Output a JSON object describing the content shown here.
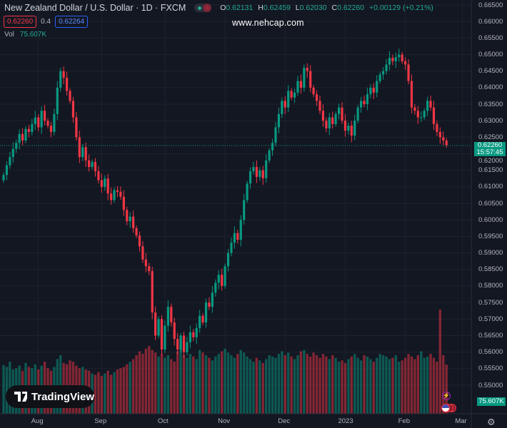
{
  "header": {
    "symbol_title": "New Zealand Dollar / U.S. Dollar · 1D · FXCM",
    "ohlc": {
      "o_label": "O",
      "o": "0.62131",
      "h_label": "H",
      "h": "0.62459",
      "l_label": "L",
      "l": "0.62030",
      "c_label": "C",
      "c": "0.62260",
      "change": "+0.00129 (+0.21%)"
    },
    "bid": "0.62260",
    "spread": "0.4",
    "ask": "0.62264",
    "vol_label": "Vol",
    "vol_value": "75.607K"
  },
  "watermark": "www.nehcap.com",
  "logo_text": "TradingView",
  "current_price_label": "0.62260",
  "countdown": "15:57:45",
  "current_volume_label": "75.607K",
  "colors": {
    "up": "#089981",
    "down": "#f23645",
    "background": "#131722"
  },
  "chart_data": {
    "type": "candlestick",
    "title": "New Zealand Dollar / U.S. Dollar · 1D · FXCM",
    "y_ticks": [
      "0.66500",
      "0.66000",
      "0.65500",
      "0.65000",
      "0.64500",
      "0.64000",
      "0.63500",
      "0.63000",
      "0.62500",
      "0.62000",
      "0.61500",
      "0.61000",
      "0.60500",
      "0.60000",
      "0.59500",
      "0.59000",
      "0.58500",
      "0.58000",
      "0.57500",
      "0.57000",
      "0.56500",
      "0.56000",
      "0.55500",
      "0.55000"
    ],
    "ylim": [
      0.55,
      0.665
    ],
    "x_ticks": [
      {
        "label": "Aug",
        "bar": 11
      },
      {
        "label": "Sep",
        "bar": 31
      },
      {
        "label": "Oct",
        "bar": 51
      },
      {
        "label": "Nov",
        "bar": 70
      },
      {
        "label": "Dec",
        "bar": 89
      },
      {
        "label": "2023",
        "bar": 108
      },
      {
        "label": "Feb",
        "bar": 127
      },
      {
        "label": "Mar",
        "bar": 145
      }
    ],
    "first_open": 0.612,
    "close": [
      0.6136,
      0.6165,
      0.619,
      0.6215,
      0.6233,
      0.626,
      0.624,
      0.6275,
      0.6266,
      0.629,
      0.631,
      0.628,
      0.633,
      0.63,
      0.6285,
      0.6266,
      0.632,
      0.64,
      0.645,
      0.643,
      0.639,
      0.636,
      0.631,
      0.625,
      0.619,
      0.622,
      0.618,
      0.616,
      0.6175,
      0.6147,
      0.612,
      0.61,
      0.6125,
      0.608,
      0.606,
      0.609,
      0.6085,
      0.607,
      0.603,
      0.5996,
      0.601,
      0.5975,
      0.5953,
      0.592,
      0.588,
      0.586,
      0.5845,
      0.572,
      0.565,
      0.57,
      0.5608,
      0.568,
      0.5737,
      0.569,
      0.564,
      0.5608,
      0.565,
      0.56,
      0.563,
      0.566,
      0.5645,
      0.5673,
      0.571,
      0.569,
      0.575,
      0.5737,
      0.578,
      0.581,
      0.5834,
      0.58,
      0.586,
      0.59,
      0.5931,
      0.596,
      0.594,
      0.6,
      0.606,
      0.611,
      0.6147,
      0.616,
      0.613,
      0.615,
      0.6126,
      0.618,
      0.621,
      0.6233,
      0.628,
      0.632,
      0.636,
      0.634,
      0.639,
      0.637,
      0.6385,
      0.642,
      0.64,
      0.646,
      0.645,
      0.64,
      0.638,
      0.636,
      0.633,
      0.63,
      0.6277,
      0.631,
      0.629,
      0.632,
      0.634,
      0.63,
      0.627,
      0.6285,
      0.6255,
      0.63,
      0.634,
      0.636,
      0.635,
      0.638,
      0.64,
      0.6385,
      0.642,
      0.644,
      0.645,
      0.647,
      0.649,
      0.648,
      0.6492,
      0.65,
      0.648,
      0.647,
      0.642,
      0.634,
      0.633,
      0.631,
      0.631,
      0.633,
      0.636,
      0.634,
      0.629,
      0.6266,
      0.625,
      0.624,
      0.6226
    ],
    "volume_k": [
      75,
      72,
      80,
      68,
      70,
      74,
      66,
      78,
      72,
      70,
      76,
      68,
      74,
      80,
      70,
      66,
      72,
      84,
      90,
      78,
      76,
      82,
      80,
      74,
      70,
      72,
      68,
      66,
      62,
      60,
      64,
      58,
      62,
      66,
      60,
      64,
      68,
      70,
      72,
      76,
      80,
      84,
      90,
      96,
      92,
      100,
      104,
      98,
      94,
      88,
      92,
      86,
      90,
      84,
      80,
      96,
      100,
      90,
      86,
      92,
      88,
      84,
      98,
      94,
      90,
      86,
      82,
      88,
      92,
      96,
      100,
      94,
      90,
      86,
      92,
      98,
      94,
      88,
      84,
      80,
      86,
      82,
      78,
      84,
      90,
      88,
      86,
      92,
      96,
      90,
      94,
      88,
      84,
      90,
      96,
      98,
      92,
      88,
      94,
      90,
      86,
      92,
      88,
      84,
      90,
      86,
      80,
      82,
      78,
      84,
      88,
      92,
      86,
      82,
      90,
      88,
      84,
      80,
      86,
      92,
      90,
      88,
      84,
      86,
      90,
      80,
      82,
      86,
      92,
      88,
      84,
      90,
      96,
      86,
      88,
      92,
      86,
      80,
      160,
      90,
      75.607
    ],
    "volume_max_k": 170
  }
}
